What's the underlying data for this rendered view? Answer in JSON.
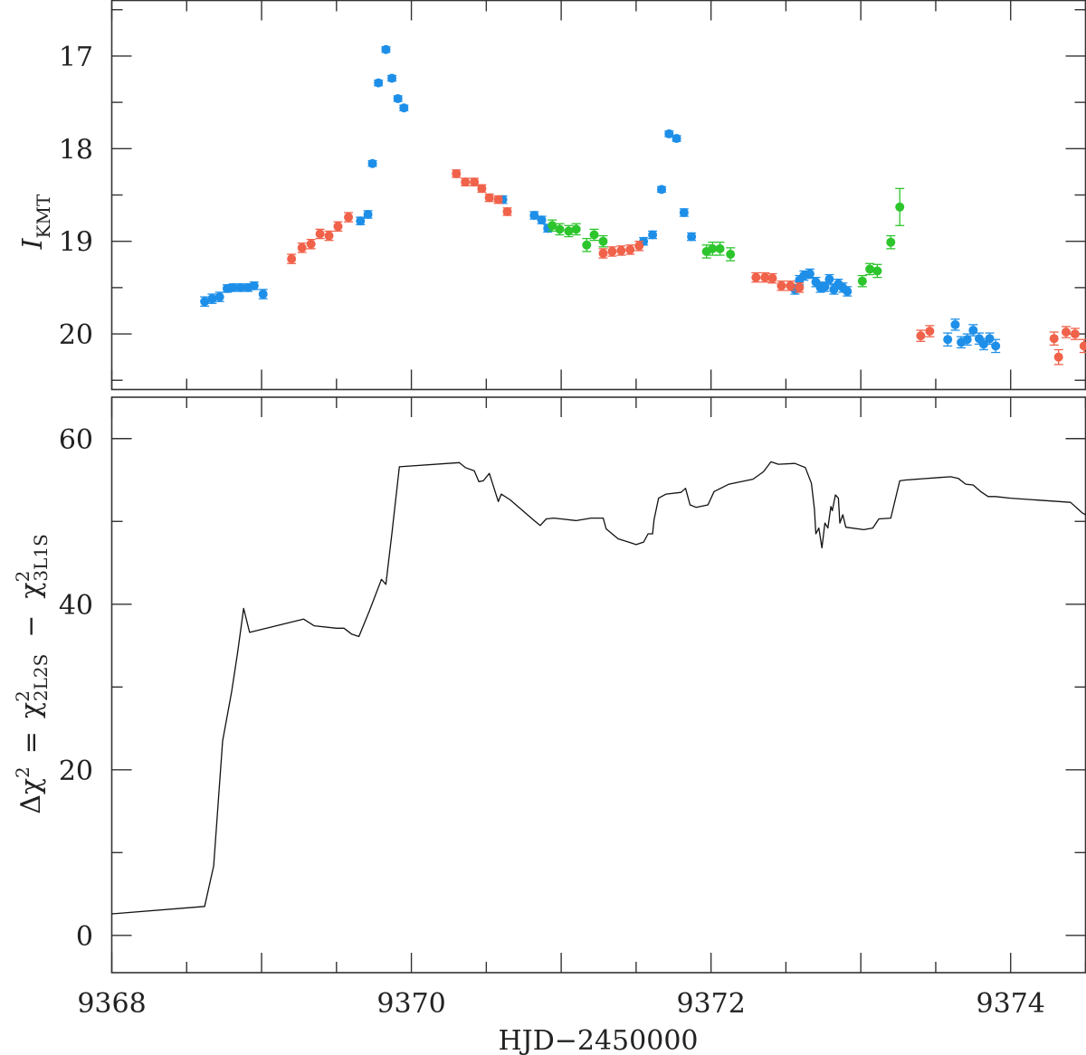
{
  "colors": {
    "kmta": "#1e8fe8",
    "kmtc": "#f0624a",
    "kmts": "#2cc52c",
    "line": "#111111",
    "frame": "#333333"
  },
  "xlabel": "HJD−2450000",
  "top_ylabel": {
    "main": "I",
    "sub": "KMT"
  },
  "bottom_ylabel": {
    "lhs": "Δχ",
    "lhs_sup": "2",
    "eq": "=",
    "a": "χ",
    "a_sup": "2",
    "a_sub": "2L2S",
    "minus": "−",
    "b": "χ",
    "b_sup": "2",
    "b_sub": "3L1S"
  },
  "chart_data": [
    {
      "type": "scatter",
      "name": "lightcurve",
      "ylabel": "I_KMT",
      "xlim": [
        9368,
        9374.5
      ],
      "ylim": [
        20.6,
        16.4
      ],
      "y_inverted": true,
      "yticks": [
        17,
        18,
        19,
        20
      ],
      "series": [
        {
          "color": "#1e8fe8",
          "points": [
            [
              9368.62,
              19.65,
              0.05
            ],
            [
              9368.67,
              19.62,
              0.05
            ],
            [
              9368.72,
              19.6,
              0.05
            ],
            [
              9368.77,
              19.51,
              0.04
            ],
            [
              9368.81,
              19.5,
              0.04
            ],
            [
              9368.86,
              19.5,
              0.04
            ],
            [
              9368.91,
              19.5,
              0.04
            ],
            [
              9368.95,
              19.48,
              0.04
            ],
            [
              9369.01,
              19.57,
              0.05
            ],
            [
              9369.66,
              18.78,
              0.04
            ],
            [
              9369.71,
              18.71,
              0.04
            ],
            [
              9369.74,
              18.16,
              0.03
            ],
            [
              9369.78,
              17.29,
              0.03
            ],
            [
              9369.83,
              16.93,
              0.03
            ],
            [
              9369.87,
              17.24,
              0.03
            ],
            [
              9369.91,
              17.46,
              0.03
            ],
            [
              9369.95,
              17.56,
              0.03
            ],
            [
              9370.61,
              18.55,
              0.04
            ],
            [
              9370.82,
              18.72,
              0.04
            ],
            [
              9370.87,
              18.77,
              0.04
            ],
            [
              9370.91,
              18.86,
              0.04
            ],
            [
              9371.55,
              19.0,
              0.04
            ],
            [
              9371.61,
              18.93,
              0.04
            ],
            [
              9371.67,
              18.44,
              0.03
            ],
            [
              9371.72,
              17.84,
              0.03
            ],
            [
              9371.77,
              17.89,
              0.03
            ],
            [
              9371.82,
              18.69,
              0.04
            ],
            [
              9371.87,
              18.95,
              0.04
            ],
            [
              9372.56,
              19.52,
              0.05
            ],
            [
              9372.59,
              19.42,
              0.05
            ],
            [
              9372.62,
              19.37,
              0.05
            ],
            [
              9372.66,
              19.35,
              0.05
            ],
            [
              9372.7,
              19.44,
              0.05
            ],
            [
              9372.73,
              19.5,
              0.05
            ],
            [
              9372.76,
              19.49,
              0.05
            ],
            [
              9372.79,
              19.41,
              0.05
            ],
            [
              9372.82,
              19.52,
              0.05
            ],
            [
              9372.85,
              19.46,
              0.05
            ],
            [
              9372.88,
              19.5,
              0.05
            ],
            [
              9372.91,
              19.54,
              0.05
            ],
            [
              9373.58,
              20.06,
              0.07
            ],
            [
              9373.63,
              19.9,
              0.06
            ],
            [
              9373.67,
              20.09,
              0.06
            ],
            [
              9373.71,
              20.06,
              0.06
            ],
            [
              9373.75,
              19.96,
              0.06
            ],
            [
              9373.79,
              20.05,
              0.06
            ],
            [
              9373.82,
              20.11,
              0.06
            ],
            [
              9373.86,
              20.05,
              0.06
            ],
            [
              9373.9,
              20.13,
              0.07
            ]
          ]
        },
        {
          "color": "#f0624a",
          "points": [
            [
              9369.2,
              19.19,
              0.05
            ],
            [
              9369.27,
              19.07,
              0.05
            ],
            [
              9369.33,
              19.03,
              0.05
            ],
            [
              9369.39,
              18.92,
              0.05
            ],
            [
              9369.45,
              18.94,
              0.05
            ],
            [
              9369.51,
              18.84,
              0.05
            ],
            [
              9369.58,
              18.74,
              0.05
            ],
            [
              9370.3,
              18.27,
              0.04
            ],
            [
              9370.36,
              18.36,
              0.04
            ],
            [
              9370.42,
              18.36,
              0.04
            ],
            [
              9370.47,
              18.43,
              0.04
            ],
            [
              9370.52,
              18.53,
              0.04
            ],
            [
              9370.58,
              18.55,
              0.04
            ],
            [
              9370.64,
              18.68,
              0.04
            ],
            [
              9371.28,
              19.13,
              0.05
            ],
            [
              9371.34,
              19.11,
              0.05
            ],
            [
              9371.4,
              19.1,
              0.05
            ],
            [
              9371.46,
              19.09,
              0.05
            ],
            [
              9371.52,
              19.05,
              0.05
            ],
            [
              9372.3,
              19.39,
              0.05
            ],
            [
              9372.36,
              19.39,
              0.05
            ],
            [
              9372.41,
              19.4,
              0.05
            ],
            [
              9372.47,
              19.48,
              0.05
            ],
            [
              9372.53,
              19.48,
              0.05
            ],
            [
              9372.59,
              19.5,
              0.05
            ],
            [
              9373.4,
              20.02,
              0.06
            ],
            [
              9373.46,
              19.97,
              0.06
            ],
            [
              9374.29,
              20.05,
              0.07
            ],
            [
              9374.32,
              20.25,
              0.08
            ],
            [
              9374.37,
              19.98,
              0.06
            ],
            [
              9374.43,
              20.0,
              0.06
            ],
            [
              9374.49,
              20.13,
              0.07
            ]
          ]
        },
        {
          "color": "#2cc52c",
          "points": [
            [
              9370.94,
              18.83,
              0.06
            ],
            [
              9370.99,
              18.87,
              0.06
            ],
            [
              9371.05,
              18.89,
              0.06
            ],
            [
              9371.1,
              18.87,
              0.06
            ],
            [
              9371.17,
              19.04,
              0.07
            ],
            [
              9371.22,
              18.93,
              0.06
            ],
            [
              9371.28,
              19.0,
              0.06
            ],
            [
              9371.97,
              19.11,
              0.07
            ],
            [
              9372.01,
              19.08,
              0.07
            ],
            [
              9372.06,
              19.08,
              0.07
            ],
            [
              9372.13,
              19.14,
              0.07
            ],
            [
              9373.01,
              19.43,
              0.06
            ],
            [
              9373.06,
              19.3,
              0.06
            ],
            [
              9373.11,
              19.32,
              0.07
            ],
            [
              9373.2,
              19.01,
              0.07
            ],
            [
              9373.26,
              18.63,
              0.2
            ]
          ]
        }
      ]
    },
    {
      "type": "line",
      "name": "delta_chi2",
      "xlabel": "HJD−2450000",
      "ylabel": "Δχ² = χ²_2L2S − χ²_3L1S",
      "xlim": [
        9368,
        9374.5
      ],
      "ylim": [
        -4.5,
        65
      ],
      "xticks": [
        9368,
        9370,
        9372,
        9374
      ],
      "yticks": [
        0,
        20,
        40,
        60
      ],
      "x": [
        9368.0,
        9368.62,
        9368.68,
        9368.74,
        9368.8,
        9368.84,
        9368.88,
        9368.92,
        9369.28,
        9369.35,
        9369.5,
        9369.55,
        9369.6,
        9369.65,
        9369.72,
        9369.8,
        9369.83,
        9369.87,
        9369.92,
        9370.32,
        9370.36,
        9370.42,
        9370.45,
        9370.48,
        9370.52,
        9370.58,
        9370.6,
        9370.66,
        9370.82,
        9370.86,
        9370.9,
        9370.95,
        9371.0,
        9371.1,
        9371.2,
        9371.28,
        9371.3,
        9371.38,
        9371.45,
        9371.5,
        9371.55,
        9371.58,
        9371.61,
        9371.62,
        9371.65,
        9371.7,
        9371.8,
        9371.83,
        9371.86,
        9371.9,
        9371.98,
        9372.02,
        9372.12,
        9372.28,
        9372.35,
        9372.4,
        9372.45,
        9372.56,
        9372.63,
        9372.67,
        9372.69,
        9372.7,
        9372.72,
        9372.74,
        9372.76,
        9372.78,
        9372.8,
        9372.81,
        9372.83,
        9372.85,
        9372.86,
        9372.88,
        9372.9,
        9373.02,
        9373.08,
        9373.12,
        9373.2,
        9373.26,
        9373.3,
        9373.52,
        9373.6,
        9373.65,
        9373.7,
        9373.75,
        9373.8,
        9373.85,
        9373.9,
        9374.0,
        9374.4,
        9374.48,
        9374.5
      ],
      "y": [
        2.6,
        3.5,
        8.4,
        23.5,
        29.4,
        34.2,
        39.5,
        36.6,
        38.2,
        37.4,
        37.1,
        37.1,
        36.4,
        36.1,
        39.2,
        43.0,
        42.4,
        48.6,
        56.6,
        57.1,
        56.5,
        56.1,
        54.8,
        54.9,
        55.8,
        52.4,
        53.3,
        52.6,
        50.1,
        49.5,
        50.3,
        50.4,
        50.3,
        50.1,
        50.4,
        50.4,
        49.1,
        47.9,
        47.5,
        47.2,
        47.5,
        48.5,
        48.5,
        50.2,
        52.8,
        53.3,
        53.5,
        54.0,
        52.0,
        51.7,
        52.0,
        53.6,
        54.5,
        55.1,
        56.0,
        57.2,
        56.9,
        57.0,
        56.5,
        54.6,
        51.5,
        48.5,
        49.2,
        46.8,
        49.8,
        49.2,
        51.8,
        51.3,
        53.2,
        52.8,
        49.8,
        50.8,
        49.3,
        49.0,
        49.2,
        50.3,
        50.4,
        54.9,
        55.0,
        55.3,
        55.4,
        55.2,
        54.5,
        54.4,
        53.6,
        53.0,
        53.0,
        52.8,
        52.3,
        51.0,
        50.8
      ]
    }
  ]
}
